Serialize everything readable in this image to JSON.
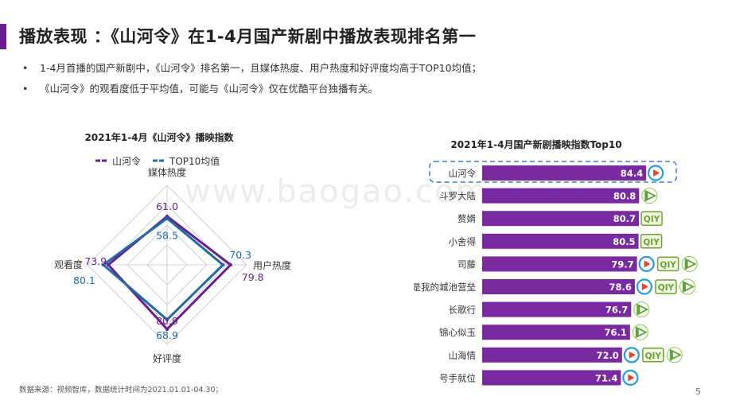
{
  "header": {
    "title": "播放表现 ：《山河令》在1-4月国产新剧中播放表现排名第一"
  },
  "bullets": [
    "1-4月首播的国产新剧中，《山河令》排名第一，且媒体热度、用户热度和好评度均高于TOP10均值；",
    "《山河令》的观看度低于平均值，可能与《山河令》仅在优酷平台独播有关。"
  ],
  "bullet_marker": "•",
  "watermark": "www.baogao.com",
  "footer": {
    "source": "数据来源：视频智库，数据统计时间为2021.01.01-04.30；",
    "page": "5"
  },
  "colors": {
    "accent": "#6a1e8f",
    "series_shanheling": "#6a1e8f",
    "series_top10": "#1f6aa8",
    "bar": "#7a2aa0",
    "highlight_border": "#3b7cc4",
    "youku": "#1f9fe0",
    "tencent": "#5aa43a",
    "iqiyi": "#6aa42a"
  },
  "chart_data": [
    {
      "type": "radar",
      "title": "2021年1-4月《山河令》播映指数",
      "axes": [
        "媒体热度",
        "用户热度",
        "好评度",
        "观看度"
      ],
      "series": [
        {
          "name": "山河令",
          "values": [
            61.0,
            79.8,
            80.9,
            73.9
          ]
        },
        {
          "name": "TOP10均值",
          "values": [
            58.5,
            70.3,
            68.9,
            80.1
          ]
        }
      ],
      "value_labels": [
        [
          "61.0",
          "79.8",
          "80.9",
          "73.9"
        ],
        [
          "58.5",
          "70.3",
          "68.9",
          "80.1"
        ]
      ],
      "rmax": 100,
      "legend": "top"
    },
    {
      "type": "bar",
      "orientation": "horizontal",
      "title": "2021年1-4月国产新剧播映指数Top10",
      "categories": [
        "山河令",
        "斗罗大陆",
        "赘婿",
        "小舍得",
        "司藤",
        "你是我的城池营垒",
        "长歌行",
        "锦心似玉",
        "山海情",
        "号手就位"
      ],
      "values": [
        84.4,
        80.8,
        80.7,
        80.5,
        79.7,
        78.6,
        76.7,
        76.1,
        72.0,
        71.4
      ],
      "platforms": [
        [
          "youku"
        ],
        [
          "tencent"
        ],
        [
          "iqiyi"
        ],
        [
          "iqiyi"
        ],
        [
          "youku",
          "iqiyi",
          "tencent"
        ],
        [
          "youku",
          "iqiyi",
          "tencent"
        ],
        [
          "tencent"
        ],
        [
          "tencent"
        ],
        [
          "youku",
          "iqiyi",
          "tencent"
        ],
        [
          "youku"
        ]
      ],
      "highlight": "山河令",
      "xlim": [
        0,
        90
      ]
    }
  ]
}
